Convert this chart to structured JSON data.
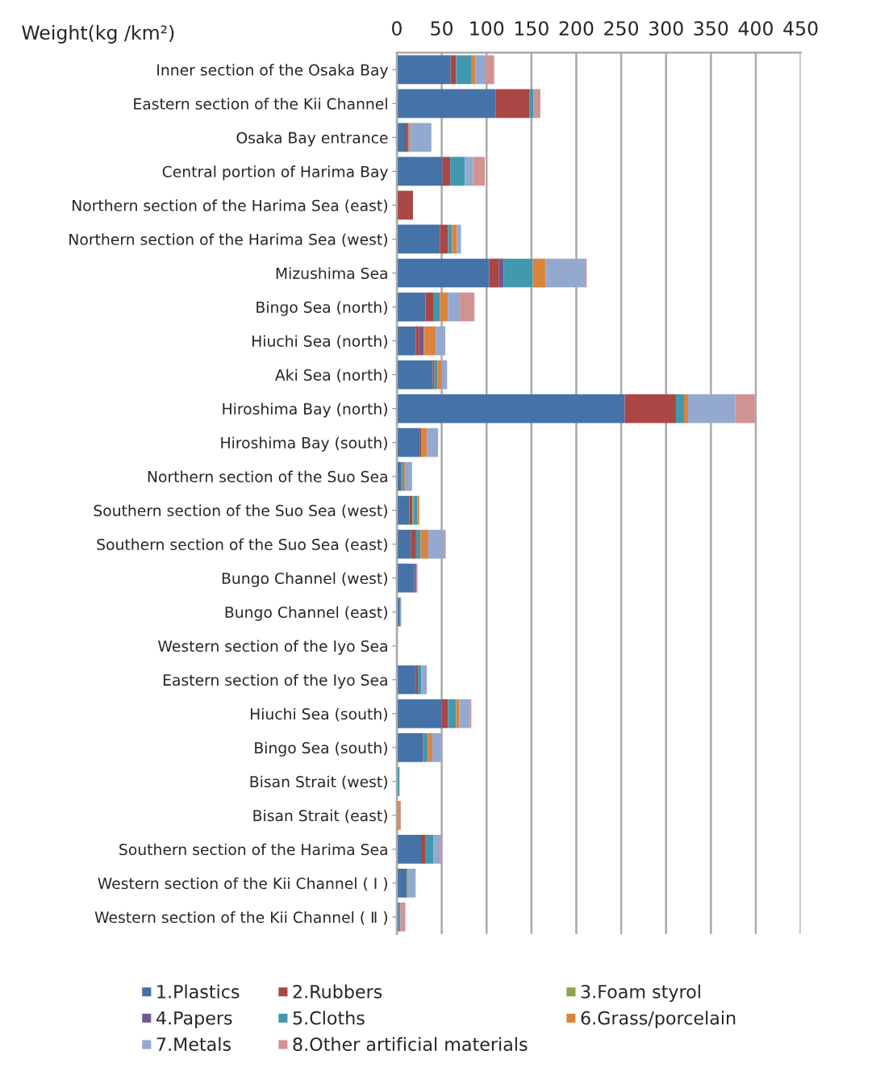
{
  "chart_data": {
    "type": "bar",
    "orientation": "horizontal",
    "stacked": true,
    "xlabel": "Weight(kg /km²)",
    "categories": [
      "Inner section of the Osaka Bay",
      "Eastern section of the Kii Channel",
      "Osaka Bay entrance",
      "Central portion of Harima Bay",
      "Northern section of the Harima Sea (east)",
      "Northern section of the Harima Sea (west)",
      "Mizushima Sea",
      "Bingo Sea (north)",
      "Hiuchi Sea (north)",
      "Aki Sea (north)",
      "Hiroshima Bay (north)",
      "Hiroshima Bay (south)",
      "Northern section of the Suo Sea",
      "Southern section of the Suo Sea (west)",
      "Southern section of the Suo Sea (east)",
      "Bungo Channel (west)",
      "Bungo Channel (east)",
      "Western section of the Iyo Sea",
      "Eastern section of the Iyo Sea",
      "Hiuchi Sea (south)",
      "Bingo Sea (south)",
      "Bisan Strait (west)",
      "Bisan Strait (east)",
      "Southern section of the Harima Sea",
      "Western section of the Kii Channel ( Ⅰ )",
      "Western section of the Kii Channel ( Ⅱ )"
    ],
    "series": [
      {
        "name": "1.Plastics",
        "color": "#4572a7",
        "values": [
          60,
          110,
          9,
          51,
          0,
          48,
          103,
          32,
          21,
          40,
          254,
          26,
          5,
          14,
          15.5,
          19.5,
          3.5,
          0,
          21.5,
          50,
          27,
          0,
          0,
          27,
          11,
          2.5
        ]
      },
      {
        "name": "2.Rubbers",
        "color": "#aa4643",
        "values": [
          6,
          38,
          2,
          8.5,
          18,
          9,
          11,
          8.5,
          4,
          2,
          57,
          1.5,
          1,
          3.5,
          6,
          0,
          0,
          0,
          2,
          7,
          0,
          0,
          1.5,
          4.5,
          0,
          0
        ]
      },
      {
        "name": "3.Foam styrol",
        "color": "#89a54e",
        "values": [
          0,
          0,
          0,
          0,
          0,
          0,
          0,
          0,
          0,
          0,
          0,
          0,
          0,
          1.5,
          0,
          0,
          0,
          0,
          0,
          0,
          0,
          0,
          0,
          0,
          1.5,
          0
        ]
      },
      {
        "name": "4.Papers",
        "color": "#71588f",
        "values": [
          0,
          0,
          2,
          0,
          0,
          0,
          5,
          0,
          5,
          0,
          0,
          0,
          0,
          0,
          0,
          2,
          0,
          0,
          0,
          0,
          2,
          0,
          0,
          0,
          0,
          0
        ]
      },
      {
        "name": "5.Cloths",
        "color": "#4198af",
        "values": [
          17.5,
          4.5,
          0,
          16.5,
          0,
          4.5,
          32.5,
          7.5,
          0,
          3.5,
          9,
          0,
          2,
          4,
          5,
          0,
          0,
          0,
          4,
          9,
          5.5,
          3,
          0,
          9.5,
          0,
          1.5
        ]
      },
      {
        "name": "6.Grass/porcelain",
        "color": "#db843d",
        "values": [
          4,
          0,
          2,
          0,
          0,
          5.5,
          14.5,
          9,
          13.5,
          4.5,
          4.5,
          6,
          1,
          2,
          8.5,
          0,
          0,
          0,
          0,
          3.5,
          5,
          0,
          2,
          0,
          0,
          0
        ]
      },
      {
        "name": "7.Metals",
        "color": "#93a9cf",
        "values": [
          11.5,
          0,
          23.5,
          9,
          0,
          4.5,
          43.5,
          13,
          10.5,
          6,
          52.5,
          12.5,
          8,
          0,
          18,
          0,
          1.5,
          0,
          6,
          12,
          10,
          0,
          0,
          7.5,
          8.5,
          0
        ]
      },
      {
        "name": "8.Other artificial materials",
        "color": "#d19392",
        "values": [
          9.5,
          7.5,
          0,
          13,
          0,
          0,
          2,
          16.5,
          0,
          0,
          22,
          0,
          0,
          0,
          1.5,
          1.5,
          0,
          0,
          0,
          1.5,
          1,
          0,
          1,
          2,
          0,
          5.5
        ]
      }
    ],
    "xlim": [
      0,
      450
    ],
    "xticks": [
      0,
      50,
      100,
      150,
      200,
      250,
      300,
      350,
      400,
      450
    ],
    "grid": "x",
    "legend": "bottom",
    "marker": "square"
  }
}
